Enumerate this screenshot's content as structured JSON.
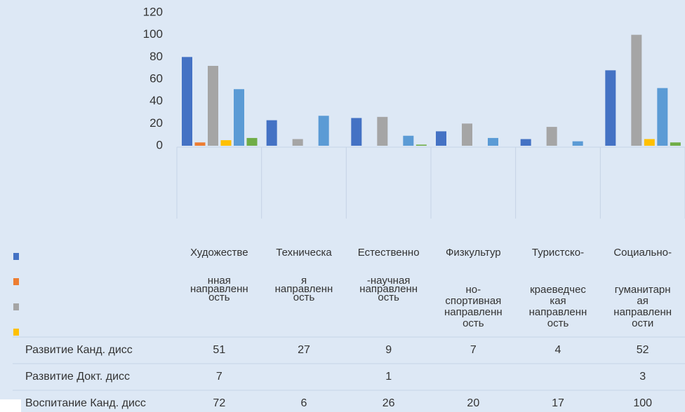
{
  "chart_data": {
    "type": "bar",
    "categories": [
      [
        "Художестве",
        "нная",
        "направленн",
        "ость"
      ],
      [
        "Техническа",
        "я",
        "направленн",
        "ость"
      ],
      [
        "Естественно",
        "-научная",
        "направленн",
        "ость"
      ],
      [
        "Физкультур",
        "но-",
        "спортивная",
        "направленн",
        "ость"
      ],
      [
        "Туристско-",
        "краеведчес",
        "кая",
        "направленн",
        "ость"
      ],
      [
        "Социально-",
        "гуманитарн",
        "ая",
        "направленн",
        "ости"
      ]
    ],
    "series": [
      {
        "color": "#4472c4",
        "values": [
          80,
          23,
          25,
          13,
          6,
          68
        ]
      },
      {
        "color": "#ed7d31",
        "values": [
          3,
          null,
          null,
          null,
          null,
          null
        ]
      },
      {
        "name": "Воспитание Канд. дисс",
        "color": "#a5a5a5",
        "values": [
          72,
          6,
          26,
          20,
          17,
          100
        ]
      },
      {
        "color": "#ffc000",
        "values": [
          5,
          null,
          null,
          null,
          null,
          6
        ]
      },
      {
        "name": "Развитие Канд. дисс",
        "color": "#5b9bd5",
        "values": [
          51,
          27,
          9,
          7,
          4,
          52
        ]
      },
      {
        "name": "Развитие Докт. дисс",
        "color": "#70ad47",
        "values": [
          7,
          null,
          1,
          null,
          null,
          3
        ]
      }
    ],
    "ylim": [
      0,
      120
    ],
    "yticks": [
      0,
      20,
      40,
      60,
      80,
      100,
      120
    ]
  }
}
